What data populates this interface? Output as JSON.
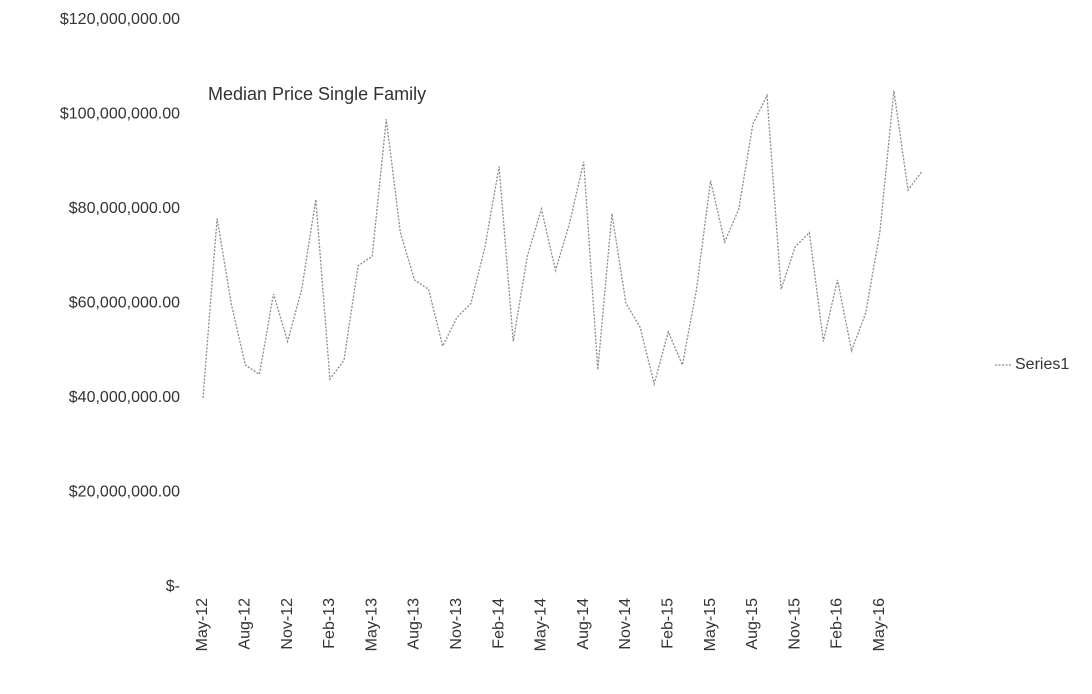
{
  "chart_data": {
    "type": "line",
    "title": "Median Price Single Family",
    "categories": [
      "May-12",
      null,
      null,
      "Aug-12",
      null,
      null,
      "Nov-12",
      null,
      null,
      "Feb-13",
      null,
      null,
      "May-13",
      null,
      null,
      "Aug-13",
      null,
      null,
      "Nov-13",
      null,
      null,
      "Feb-14",
      null,
      null,
      "May-14",
      null,
      null,
      "Aug-14",
      null,
      null,
      "Nov-14",
      null,
      null,
      "Feb-15",
      null,
      null,
      "May-15",
      null,
      null,
      "Aug-15",
      null,
      null,
      "Nov-15",
      null,
      null,
      "Feb-16",
      null,
      null,
      "May-16",
      null,
      null,
      null
    ],
    "series": [
      {
        "name": "Series1",
        "color": "#8c8c8c",
        "values": [
          40000000,
          78000000,
          60000000,
          47000000,
          45000000,
          62000000,
          52000000,
          63000000,
          82000000,
          44000000,
          48000000,
          68000000,
          70000000,
          99000000,
          75000000,
          65000000,
          63000000,
          51000000,
          57000000,
          60000000,
          72000000,
          89000000,
          52000000,
          70000000,
          80000000,
          67000000,
          77000000,
          90000000,
          46000000,
          79000000,
          60000000,
          55000000,
          43000000,
          54000000,
          47000000,
          63000000,
          86000000,
          73000000,
          80000000,
          98000000,
          104000000,
          63000000,
          72000000,
          75000000,
          52000000,
          65000000,
          50000000,
          58000000,
          75000000,
          105000000,
          84000000,
          88000000
        ]
      }
    ],
    "ylim": [
      0,
      120000000
    ],
    "yticks": [
      {
        "value": 0,
        "label": "$-"
      },
      {
        "value": 20000000,
        "label": "$20,000,000.00"
      },
      {
        "value": 40000000,
        "label": "$40,000,000.00"
      },
      {
        "value": 60000000,
        "label": "$60,000,000.00"
      },
      {
        "value": 80000000,
        "label": "$80,000,000.00"
      },
      {
        "value": 100000000,
        "label": "$100,000,000.00"
      },
      {
        "value": 120000000,
        "label": "$120,000,000.00"
      }
    ],
    "legend": "right",
    "grid": false
  }
}
